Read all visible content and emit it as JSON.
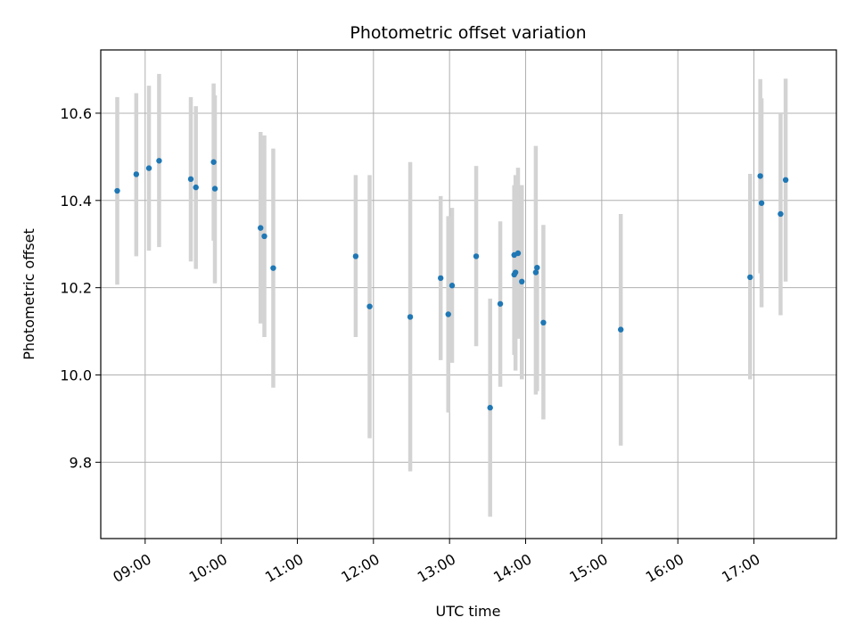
{
  "chart_data": {
    "type": "scatter",
    "title": "Photometric offset variation",
    "xlabel": "UTC time",
    "ylabel": "Photometric offset",
    "xlim": [
      "08:25",
      "18:05"
    ],
    "ylim": [
      9.625,
      10.745
    ],
    "grid": true,
    "x_ticks": [
      "09:00",
      "10:00",
      "11:00",
      "12:00",
      "13:00",
      "14:00",
      "15:00",
      "16:00",
      "17:00"
    ],
    "y_ticks": [
      9.8,
      10.0,
      10.2,
      10.4,
      10.6
    ],
    "y_tick_labels": [
      "9.8",
      "10.0",
      "10.2",
      "10.4",
      "10.6"
    ],
    "point_color": "#1f77b4",
    "errorbar_color": "#d3d3d3",
    "points": [
      {
        "x": "08:38",
        "y": 10.422,
        "lo": 10.207,
        "hi": 10.637
      },
      {
        "x": "08:53",
        "y": 10.46,
        "lo": 10.272,
        "hi": 10.646
      },
      {
        "x": "09:03",
        "y": 10.474,
        "lo": 10.285,
        "hi": 10.663
      },
      {
        "x": "09:11",
        "y": 10.491,
        "lo": 10.293,
        "hi": 10.69
      },
      {
        "x": "09:36",
        "y": 10.449,
        "lo": 10.26,
        "hi": 10.637
      },
      {
        "x": "09:40",
        "y": 10.43,
        "lo": 10.243,
        "hi": 10.616
      },
      {
        "x": "09:54",
        "y": 10.488,
        "lo": 10.308,
        "hi": 10.668
      },
      {
        "x": "09:55",
        "y": 10.427,
        "lo": 10.21,
        "hi": 10.641
      },
      {
        "x": "10:31",
        "y": 10.337,
        "lo": 10.118,
        "hi": 10.557
      },
      {
        "x": "10:34",
        "y": 10.318,
        "lo": 10.087,
        "hi": 10.549
      },
      {
        "x": "10:41",
        "y": 10.245,
        "lo": 9.971,
        "hi": 10.519
      },
      {
        "x": "11:46",
        "y": 10.272,
        "lo": 10.087,
        "hi": 10.458
      },
      {
        "x": "11:57",
        "y": 10.157,
        "lo": 9.855,
        "hi": 10.458
      },
      {
        "x": "12:29",
        "y": 10.133,
        "lo": 9.779,
        "hi": 10.488
      },
      {
        "x": "12:53",
        "y": 10.222,
        "lo": 10.034,
        "hi": 10.41
      },
      {
        "x": "12:59",
        "y": 10.139,
        "lo": 9.914,
        "hi": 10.364
      },
      {
        "x": "13:02",
        "y": 10.205,
        "lo": 10.028,
        "hi": 10.383
      },
      {
        "x": "13:21",
        "y": 10.272,
        "lo": 10.066,
        "hi": 10.479
      },
      {
        "x": "13:32",
        "y": 9.925,
        "lo": 9.675,
        "hi": 10.175
      },
      {
        "x": "13:40",
        "y": 10.163,
        "lo": 9.973,
        "hi": 10.352
      },
      {
        "x": "13:51",
        "y": 10.23,
        "lo": 10.071,
        "hi": 10.389
      },
      {
        "x": "13:51",
        "y": 10.275,
        "lo": 10.046,
        "hi": 10.435
      },
      {
        "x": "13:52",
        "y": 10.235,
        "lo": 10.01,
        "hi": 10.458
      },
      {
        "x": "13:54",
        "y": 10.279,
        "lo": 10.083,
        "hi": 10.475
      },
      {
        "x": "13:57",
        "y": 10.214,
        "lo": 9.99,
        "hi": 10.435
      },
      {
        "x": "14:08",
        "y": 10.235,
        "lo": 9.955,
        "hi": 10.525
      },
      {
        "x": "14:09",
        "y": 10.246,
        "lo": 9.963,
        "hi": 10.245
      },
      {
        "x": "14:14",
        "y": 10.12,
        "lo": 9.898,
        "hi": 10.344
      },
      {
        "x": "15:15",
        "y": 10.104,
        "lo": 9.838,
        "hi": 10.369
      },
      {
        "x": "16:57",
        "y": 10.224,
        "lo": 9.99,
        "hi": 10.461
      },
      {
        "x": "17:05",
        "y": 10.456,
        "lo": 10.233,
        "hi": 10.678
      },
      {
        "x": "17:06",
        "y": 10.394,
        "lo": 10.155,
        "hi": 10.634
      },
      {
        "x": "17:21",
        "y": 10.369,
        "lo": 10.137,
        "hi": 10.6
      },
      {
        "x": "17:25",
        "y": 10.447,
        "lo": 10.214,
        "hi": 10.679
      }
    ]
  }
}
